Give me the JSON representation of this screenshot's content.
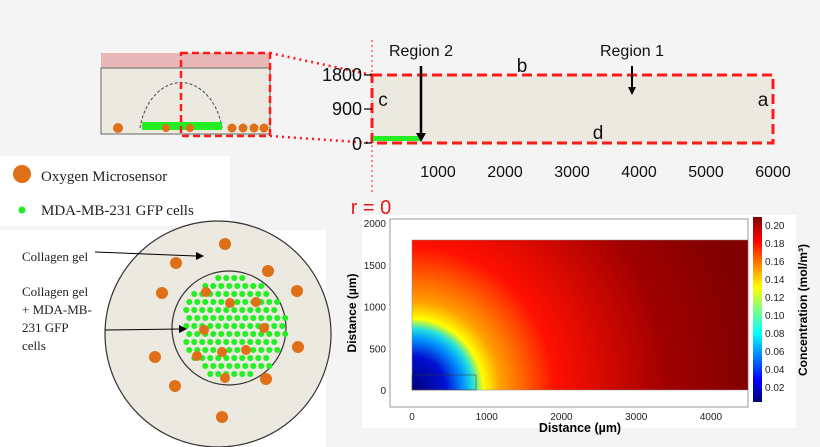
{
  "schematic": {
    "region_labels": [
      "Region 2",
      "Region 1"
    ],
    "boundary_labels": {
      "a": "a",
      "b": "b",
      "c": "c",
      "d": "d"
    },
    "y_ticks": [
      "1800",
      "900",
      "0"
    ],
    "x_ticks": [
      "1000",
      "2000",
      "3000",
      "4000",
      "5000",
      "6000"
    ],
    "origin_label": "r = 0",
    "colors": {
      "dashed_box": "#ff1a1a",
      "medium": "#e8b8b8",
      "gel": "#ece9e0",
      "cells": "#22ee22",
      "sensor": "#e07018"
    }
  },
  "legend": {
    "items": [
      {
        "label": "Oxygen Microsensor",
        "icon": "orange-circle"
      },
      {
        "label": "MDA-MB-231 GFP cells",
        "icon": "green-dot"
      }
    ]
  },
  "top_view": {
    "outer_label": "Collagen gel",
    "inner_label_lines": [
      "Collagen gel",
      "+ MDA-MB-",
      "231 GFP",
      "cells"
    ]
  },
  "chart_data": {
    "type": "heatmap",
    "xlabel": "Distance (µm)",
    "ylabel": "Distance (µm)",
    "x_ticks": [
      "0",
      "1000",
      "2000",
      "3000",
      "4000"
    ],
    "y_ticks": [
      "0",
      "500",
      "1000",
      "1500",
      "2000"
    ],
    "xlim": [
      -300,
      4500
    ],
    "ylim": [
      -200,
      2050
    ],
    "domain": {
      "x": [
        0,
        4500
      ],
      "y": [
        0,
        1800
      ]
    },
    "colorbar": {
      "label": "Concentration (mol/m³)",
      "ticks": [
        "0.20",
        "0.18",
        "0.16",
        "0.14",
        "0.12",
        "0.10",
        "0.08",
        "0.06",
        "0.04",
        "0.02"
      ],
      "range": [
        0.005,
        0.205
      ],
      "colormap": "jet"
    },
    "description_values": {
      "min_region": "near origin (cell layer, 0–850 µm)",
      "max_value": 0.2
    }
  }
}
